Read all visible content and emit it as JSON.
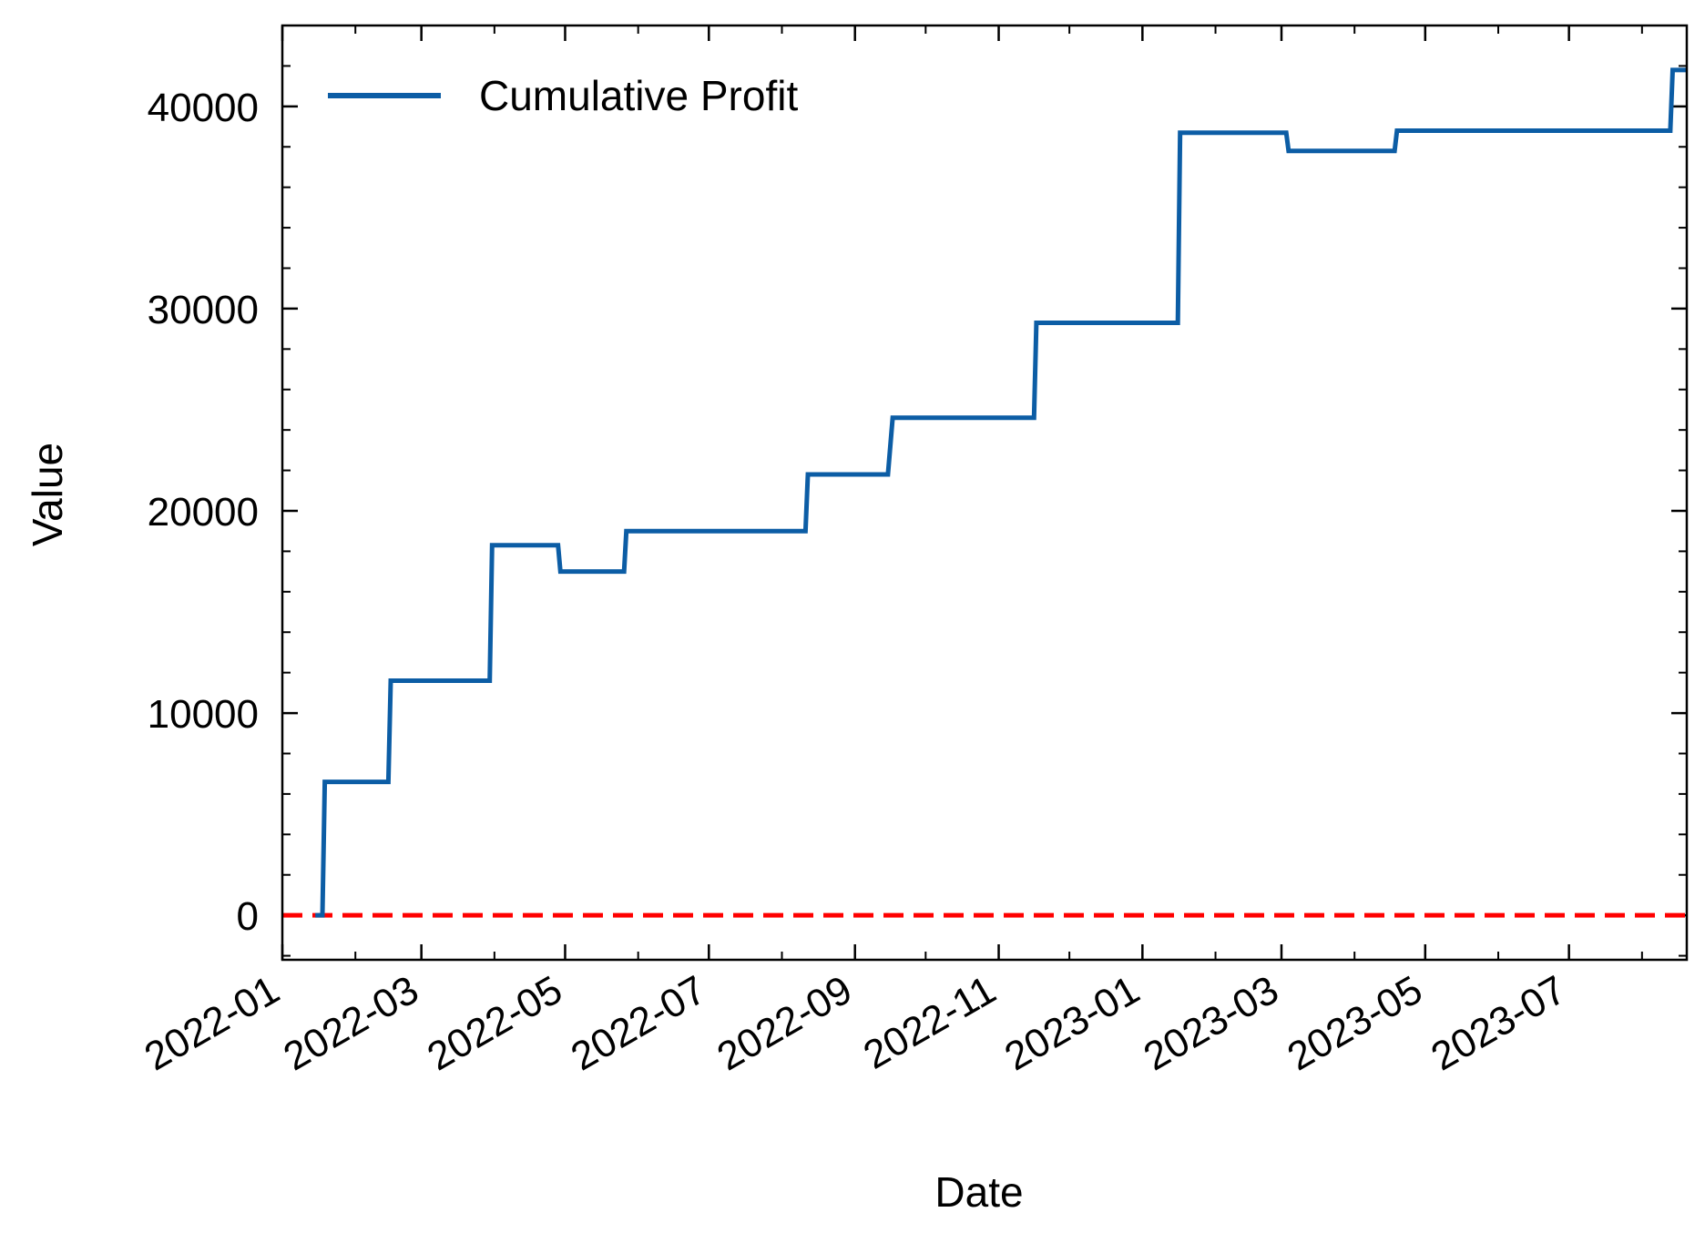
{
  "chart_data": {
    "type": "line",
    "title": "",
    "xlabel": "Date",
    "ylabel": "Value",
    "x_axis_type": "date",
    "xlim": [
      "2022-01-01",
      "2023-08-20"
    ],
    "ylim": [
      -2200,
      44000
    ],
    "x_ticks": [
      "2022-01",
      "2022-03",
      "2022-05",
      "2022-07",
      "2022-09",
      "2022-11",
      "2023-01",
      "2023-03",
      "2023-05",
      "2023-07"
    ],
    "x_tick_dates": [
      "2022-01-01",
      "2022-03-01",
      "2022-05-01",
      "2022-07-01",
      "2022-09-01",
      "2022-11-01",
      "2023-01-01",
      "2023-03-01",
      "2023-05-01",
      "2023-07-01"
    ],
    "y_ticks": [
      0,
      10000,
      20000,
      30000,
      40000
    ],
    "y_tick_labels": [
      "0",
      "10000",
      "20000",
      "30000",
      "40000"
    ],
    "legend_position": "top-left",
    "grid": false,
    "series": [
      {
        "name": "Cumulative Profit",
        "color": "#0C5DA5",
        "style": "solid",
        "points": [
          {
            "x": "2022-01-15",
            "y": 0
          },
          {
            "x": "2022-01-18",
            "y": 0
          },
          {
            "x": "2022-01-19",
            "y": 6600
          },
          {
            "x": "2022-02-15",
            "y": 6600
          },
          {
            "x": "2022-02-16",
            "y": 11600
          },
          {
            "x": "2022-03-30",
            "y": 11600
          },
          {
            "x": "2022-03-31",
            "y": 18300
          },
          {
            "x": "2022-04-28",
            "y": 18300
          },
          {
            "x": "2022-04-29",
            "y": 17000
          },
          {
            "x": "2022-05-26",
            "y": 17000
          },
          {
            "x": "2022-05-27",
            "y": 19000
          },
          {
            "x": "2022-08-11",
            "y": 19000
          },
          {
            "x": "2022-08-12",
            "y": 21800
          },
          {
            "x": "2022-09-15",
            "y": 21800
          },
          {
            "x": "2022-09-17",
            "y": 24600
          },
          {
            "x": "2022-11-16",
            "y": 24600
          },
          {
            "x": "2022-11-17",
            "y": 29300
          },
          {
            "x": "2023-01-16",
            "y": 29300
          },
          {
            "x": "2023-01-17",
            "y": 38700
          },
          {
            "x": "2023-03-03",
            "y": 38700
          },
          {
            "x": "2023-03-04",
            "y": 37800
          },
          {
            "x": "2023-04-18",
            "y": 37800
          },
          {
            "x": "2023-04-19",
            "y": 38800
          },
          {
            "x": "2023-08-13",
            "y": 38800
          },
          {
            "x": "2023-08-14",
            "y": 41800
          },
          {
            "x": "2023-08-20",
            "y": 41800
          }
        ]
      }
    ],
    "reference_lines": [
      {
        "y": 0,
        "color": "#FF0000",
        "style": "dashed"
      }
    ]
  }
}
